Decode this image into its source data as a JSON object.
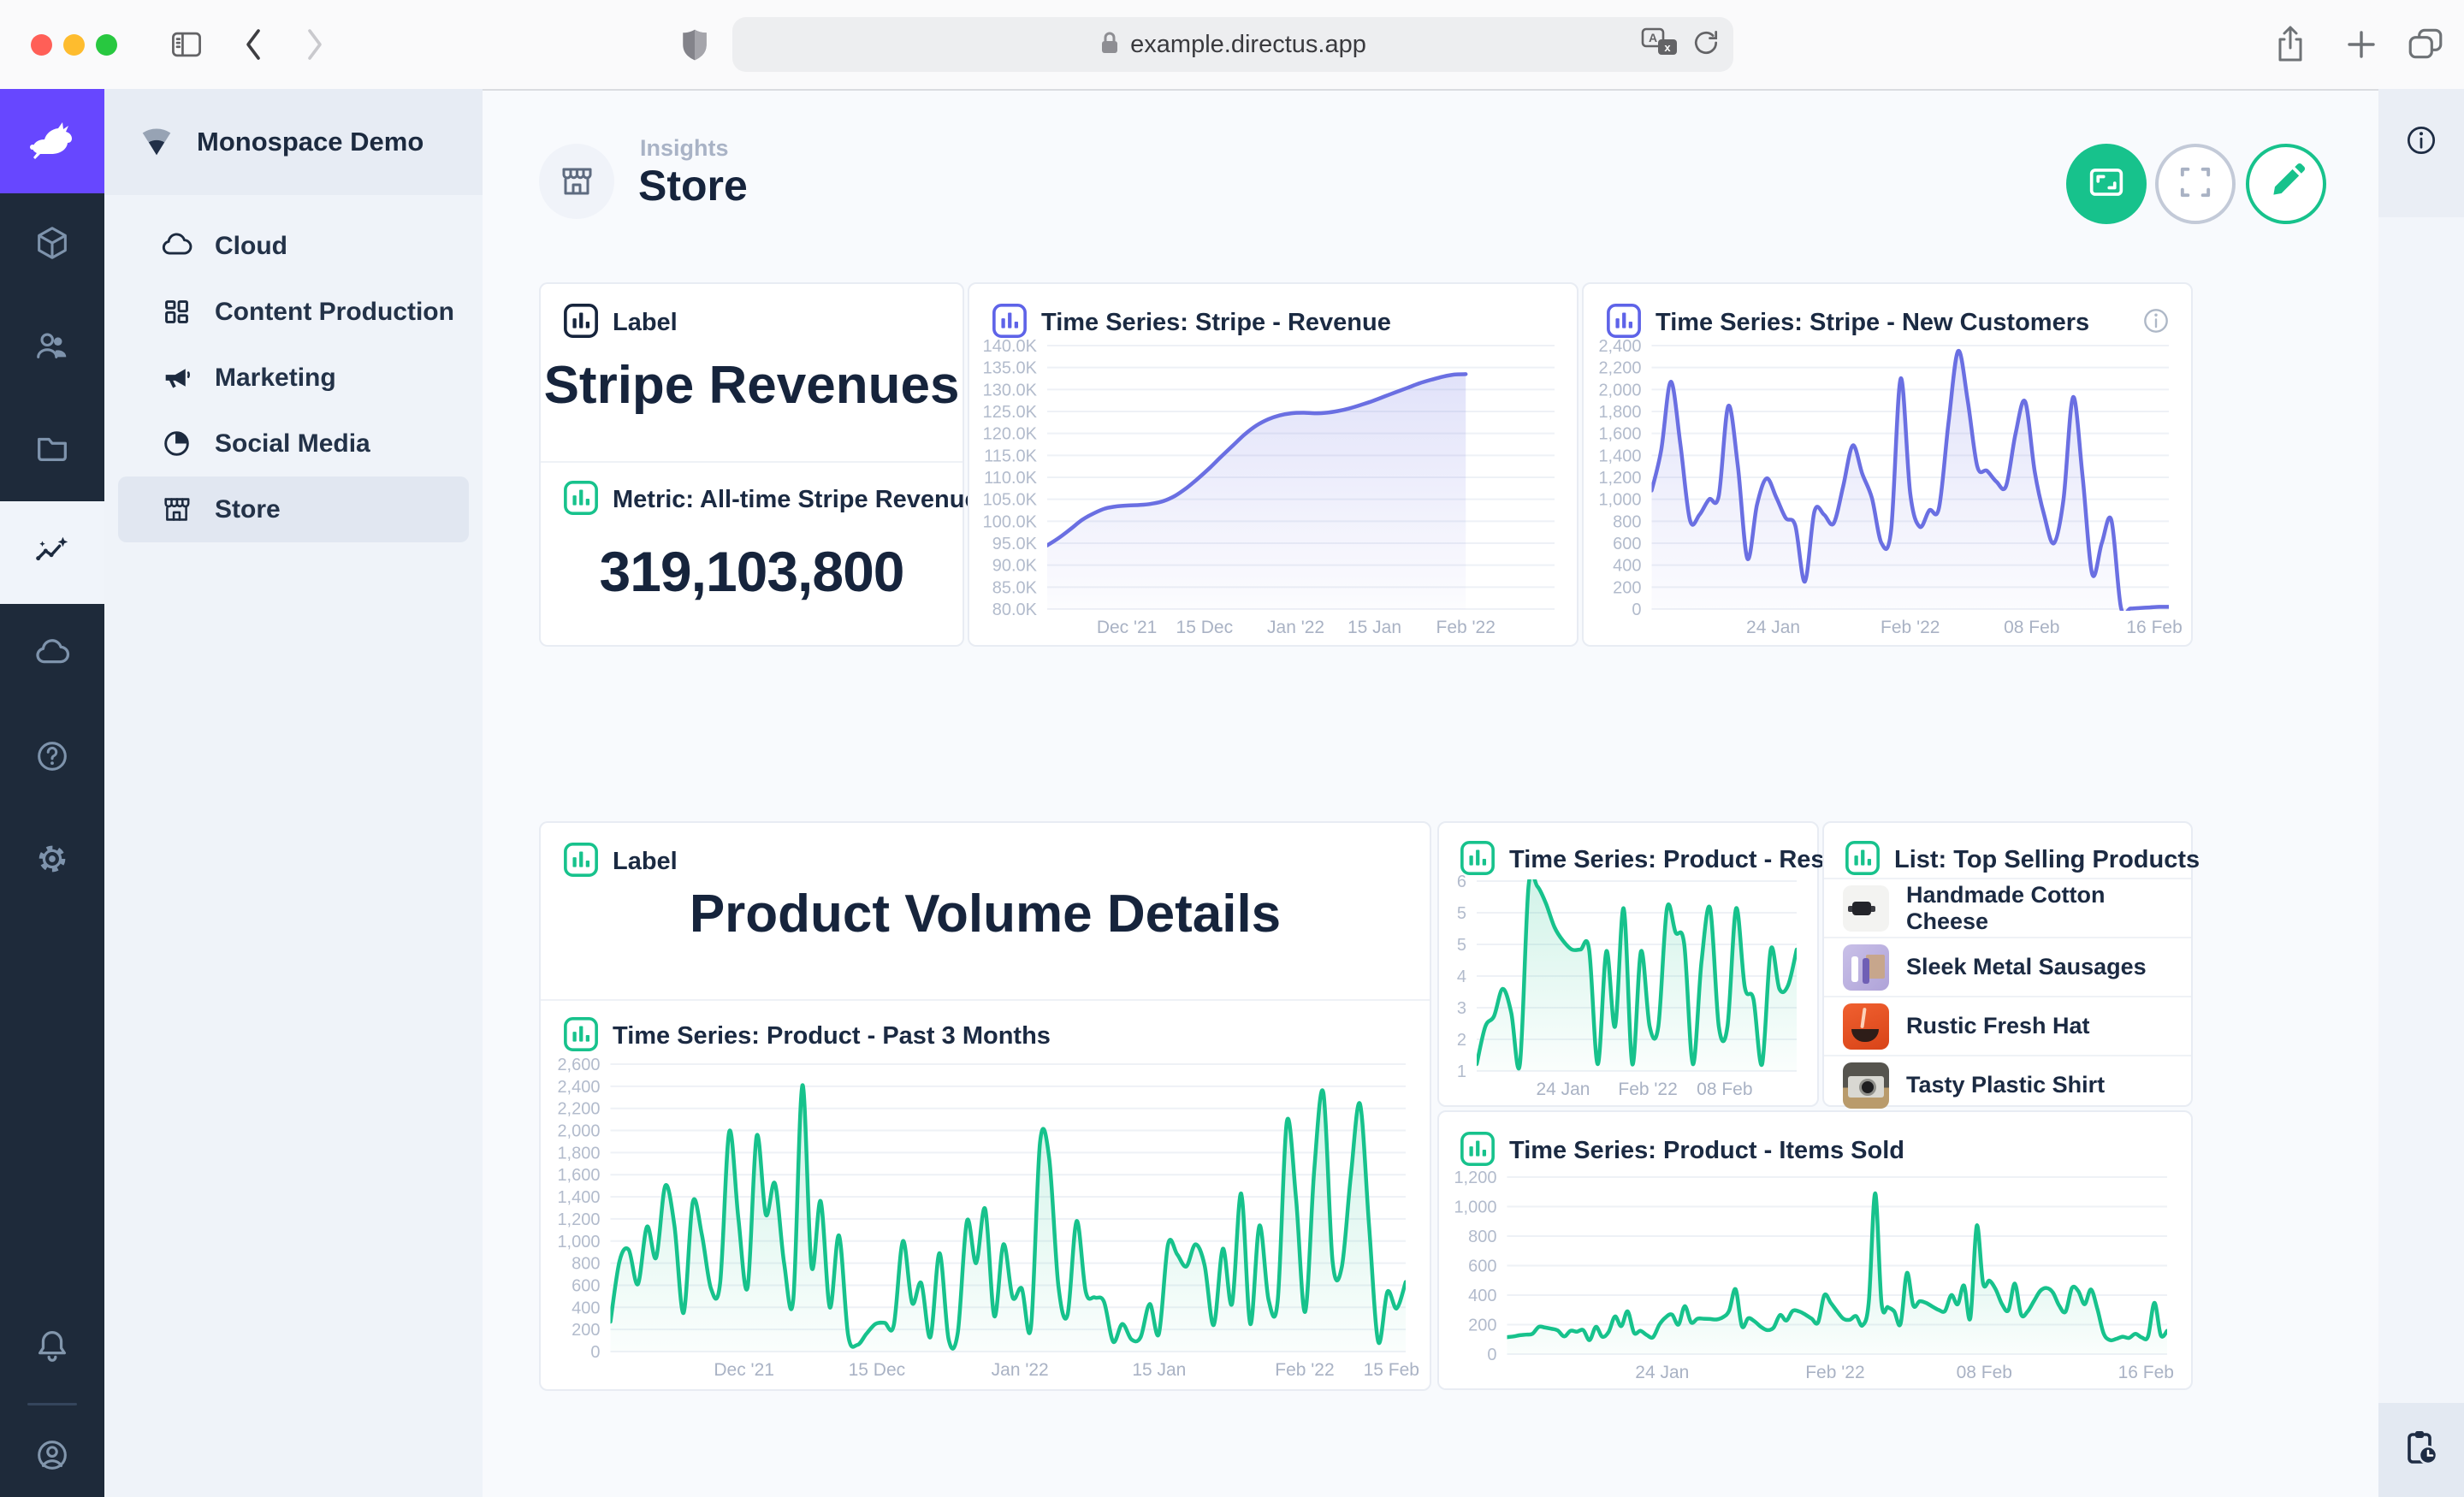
{
  "browser": {
    "url": "example.directus.app",
    "traffic_lights": [
      "close",
      "minimize",
      "zoom"
    ],
    "left_icons": [
      "sidebar-toggle-icon",
      "back-icon",
      "forward-icon",
      "shield-icon"
    ],
    "urlbar_icons": [
      "lock-icon",
      "translate-icon",
      "reload-icon"
    ],
    "right_icons": [
      "share-icon",
      "new-tab-icon",
      "tabs-icon"
    ]
  },
  "app_sidebar": {
    "logo_icon": "rabbit-icon",
    "modules": [
      {
        "icon": "cube",
        "active": false
      },
      {
        "icon": "users",
        "active": false
      },
      {
        "icon": "folder",
        "active": false
      },
      {
        "icon": "insights",
        "active": true
      },
      {
        "icon": "cloud",
        "active": false
      },
      {
        "icon": "help",
        "active": false
      },
      {
        "icon": "gear",
        "active": false
      }
    ],
    "bottom_icons": [
      "bell",
      "avatar"
    ]
  },
  "nav": {
    "project": "Monospace Demo",
    "project_icon": "signal-fan-icon",
    "items": [
      {
        "icon": "cloud",
        "label": "Cloud",
        "active": false
      },
      {
        "icon": "grid",
        "label": "Content Production",
        "active": false
      },
      {
        "icon": "megaphone",
        "label": "Marketing",
        "active": false
      },
      {
        "icon": "pie",
        "label": "Social Media",
        "active": false
      },
      {
        "icon": "store",
        "label": "Store",
        "active": true
      }
    ]
  },
  "header": {
    "breadcrumb": "Insights",
    "title": "Store",
    "title_icon": "storefront-icon"
  },
  "actions": [
    {
      "name": "present-button",
      "icon": "fit-screen-icon",
      "style": "filled-green"
    },
    {
      "name": "fullscreen-button",
      "icon": "fullscreen-icon",
      "style": "outline-gray"
    },
    {
      "name": "edit-button",
      "icon": "pencil-icon",
      "style": "outline-green"
    }
  ],
  "right_sidebar": {
    "top_icon": "info-icon",
    "bottom_icon": "clipboard-clock-icon"
  },
  "panels": {
    "label1": {
      "header": "Label",
      "text": "Stripe Revenues"
    },
    "metric": {
      "header": "Metric: All-time Stripe Revenues",
      "value": "319,103,800"
    },
    "label2": {
      "header": "Label",
      "text": "Product Volume Details"
    },
    "list": {
      "header": "List: Top Selling Products",
      "items": [
        {
          "name": "Handmade Cotton Cheese",
          "thumb": "watch"
        },
        {
          "name": "Sleek Metal Sausages",
          "thumb": "cosmetics"
        },
        {
          "name": "Rustic Fresh Hat",
          "thumb": "bowl"
        },
        {
          "name": "Tasty Plastic Shirt",
          "thumb": "camera"
        }
      ]
    }
  },
  "colors": {
    "brand_purple": "#6747FF",
    "chart_purple": "#6A6FE2",
    "chart_green": "#17C28C",
    "navy": "#16243C"
  },
  "chart_data": [
    {
      "id": "stripe-revenue",
      "type": "area",
      "title": "Time Series: Stripe - Revenue",
      "color": "#6A6FE2",
      "grid": true,
      "legend": "none",
      "ylim": [
        80,
        140
      ],
      "xend": 0.825,
      "yticks": [
        "140.0K",
        "135.0K",
        "130.0K",
        "125.0K",
        "120.0K",
        "115.0K",
        "110.0K",
        "105.0K",
        "100.0K",
        "95.0K",
        "90.0K",
        "85.0K",
        "80.0K"
      ],
      "xticks": [
        {
          "label": "Dec '21",
          "pos": 0.157
        },
        {
          "label": "15 Dec",
          "pos": 0.31
        },
        {
          "label": "Jan '22",
          "pos": 0.49
        },
        {
          "label": "15 Jan",
          "pos": 0.645
        },
        {
          "label": "Feb '22",
          "pos": 0.825
        }
      ],
      "values": [
        94.5,
        96.2,
        98.2,
        100.3,
        101.8,
        102.9,
        103.4,
        103.6,
        103.7,
        104.0,
        104.6,
        105.8,
        107.6,
        109.8,
        112.2,
        114.8,
        117.3,
        119.8,
        121.8,
        123.2,
        124.1,
        124.6,
        124.7,
        124.6,
        124.7,
        125.1,
        125.7,
        126.5,
        127.4,
        128.4,
        129.4,
        130.4,
        131.4,
        132.2,
        132.9,
        133.4,
        133.5
      ]
    },
    {
      "id": "new-customers",
      "type": "area",
      "title": "Time Series: Stripe - New Customers",
      "color": "#6A6FE2",
      "grid": true,
      "legend": "none",
      "ylim": [
        0,
        2400
      ],
      "yticks": [
        "2,400",
        "2,200",
        "2,000",
        "1,800",
        "1,600",
        "1,400",
        "1,200",
        "1,000",
        "800",
        "600",
        "400",
        "200",
        "0"
      ],
      "xticks": [
        {
          "label": "24 Jan",
          "pos": 0.235
        },
        {
          "label": "Feb '22",
          "pos": 0.5
        },
        {
          "label": "08 Feb",
          "pos": 0.735
        },
        {
          "label": "16 Feb",
          "pos": 0.972
        }
      ],
      "values": [
        1080,
        1450,
        2070,
        1500,
        810,
        860,
        1000,
        1030,
        1850,
        1300,
        460,
        950,
        1190,
        1020,
        830,
        760,
        250,
        890,
        860,
        780,
        1120,
        1490,
        1230,
        1010,
        600,
        720,
        2100,
        1050,
        750,
        900,
        920,
        1700,
        2350,
        1900,
        1300,
        1260,
        1160,
        1120,
        1600,
        1890,
        1250,
        850,
        600,
        1000,
        1930,
        1200,
        320,
        600,
        810,
        15,
        5,
        10,
        15,
        20,
        20
      ]
    },
    {
      "id": "past-3-months",
      "type": "area",
      "title": "Time Series: Product - Past 3 Months",
      "color": "#17C28C",
      "grid": true,
      "legend": "none",
      "ylim": [
        0,
        2600
      ],
      "yticks": [
        "2,600",
        "2,400",
        "2,200",
        "2,000",
        "1,800",
        "1,600",
        "1,400",
        "1,200",
        "1,000",
        "800",
        "600",
        "400",
        "200",
        "0"
      ],
      "xticks": [
        {
          "label": "Dec '21",
          "pos": 0.168
        },
        {
          "label": "15 Dec",
          "pos": 0.335
        },
        {
          "label": "Jan '22",
          "pos": 0.515
        },
        {
          "label": "15 Jan",
          "pos": 0.69
        },
        {
          "label": "Feb '22",
          "pos": 0.873
        },
        {
          "label": "15 Feb",
          "pos": 0.982
        }
      ],
      "values": [
        270,
        820,
        920,
        610,
        1130,
        850,
        1500,
        1140,
        350,
        1350,
        1060,
        570,
        620,
        1990,
        1200,
        580,
        1950,
        1240,
        1520,
        800,
        470,
        2410,
        770,
        1360,
        400,
        1050,
        150,
        60,
        160,
        250,
        260,
        240,
        1000,
        440,
        620,
        130,
        890,
        110,
        170,
        1180,
        800,
        1290,
        320,
        970,
        490,
        570,
        220,
        1890,
        1750,
        600,
        330,
        1180,
        540,
        490,
        450,
        90,
        250,
        110,
        130,
        430,
        160,
        970,
        880,
        770,
        970,
        780,
        240,
        930,
        430,
        1430,
        250,
        1140,
        470,
        460,
        2080,
        1390,
        360,
        1650,
        2340,
        820,
        760,
        1590,
        2240,
        1130,
        90,
        540,
        390,
        630
      ]
    },
    {
      "id": "restocks",
      "type": "area",
      "title": "Time Series: Product - Restocks",
      "color": "#17C28C",
      "grid": true,
      "legend": "none",
      "ylim": [
        0.9,
        6.45
      ],
      "yticks": [
        "6",
        "5",
        "5",
        "4",
        "3",
        "2",
        "1"
      ],
      "xticks": [
        {
          "label": "24 Jan",
          "pos": 0.27
        },
        {
          "label": "Feb '22",
          "pos": 0.535
        },
        {
          "label": "08 Feb",
          "pos": 0.775
        }
      ],
      "values": [
        1.1,
        2.2,
        2.5,
        3.3,
        2.6,
        1.1,
        6.3,
        6.3,
        5.8,
        5.1,
        4.7,
        4.45,
        4.45,
        4.45,
        1.1,
        4.4,
        2.2,
        5.65,
        1.1,
        4.4,
        2.2,
        2.2,
        5.65,
        4.95,
        4.6,
        1.1,
        4.1,
        5.65,
        2.2,
        2.2,
        5.65,
        3.35,
        3.0,
        1.1,
        4.45,
        3.3,
        3.4,
        4.45
      ]
    },
    {
      "id": "items-sold",
      "type": "area",
      "title": "Time Series: Product - Items Sold",
      "color": "#17C28C",
      "grid": true,
      "legend": "none",
      "ylim": [
        0,
        1200
      ],
      "yticks": [
        "1,200",
        "1,000",
        "800",
        "600",
        "400",
        "200",
        "0"
      ],
      "xticks": [
        {
          "label": "24 Jan",
          "pos": 0.235
        },
        {
          "label": "Feb '22",
          "pos": 0.497
        },
        {
          "label": "08 Feb",
          "pos": 0.723
        },
        {
          "label": "16 Feb",
          "pos": 0.968
        }
      ],
      "values": [
        115,
        120,
        128,
        132,
        138,
        185,
        180,
        172,
        160,
        120,
        158,
        152,
        163,
        95,
        185,
        118,
        150,
        255,
        190,
        290,
        145,
        158,
        130,
        115,
        200,
        250,
        268,
        200,
        325,
        215,
        240,
        240,
        238,
        235,
        250,
        295,
        440,
        190,
        243,
        222,
        185,
        163,
        180,
        265,
        228,
        293,
        290,
        268,
        240,
        215,
        400,
        348,
        290,
        240,
        233,
        258,
        195,
        355,
        1090,
        345,
        318,
        290,
        205,
        550,
        330,
        358,
        348,
        323,
        300,
        293,
        400,
        338,
        465,
        245,
        870,
        480,
        498,
        438,
        338,
        298,
        478,
        268,
        288,
        358,
        428,
        448,
        418,
        328,
        288,
        448,
        428,
        338,
        438,
        308,
        140,
        95,
        104,
        118,
        110,
        138,
        113,
        120,
        348,
        128,
        158
      ]
    }
  ]
}
